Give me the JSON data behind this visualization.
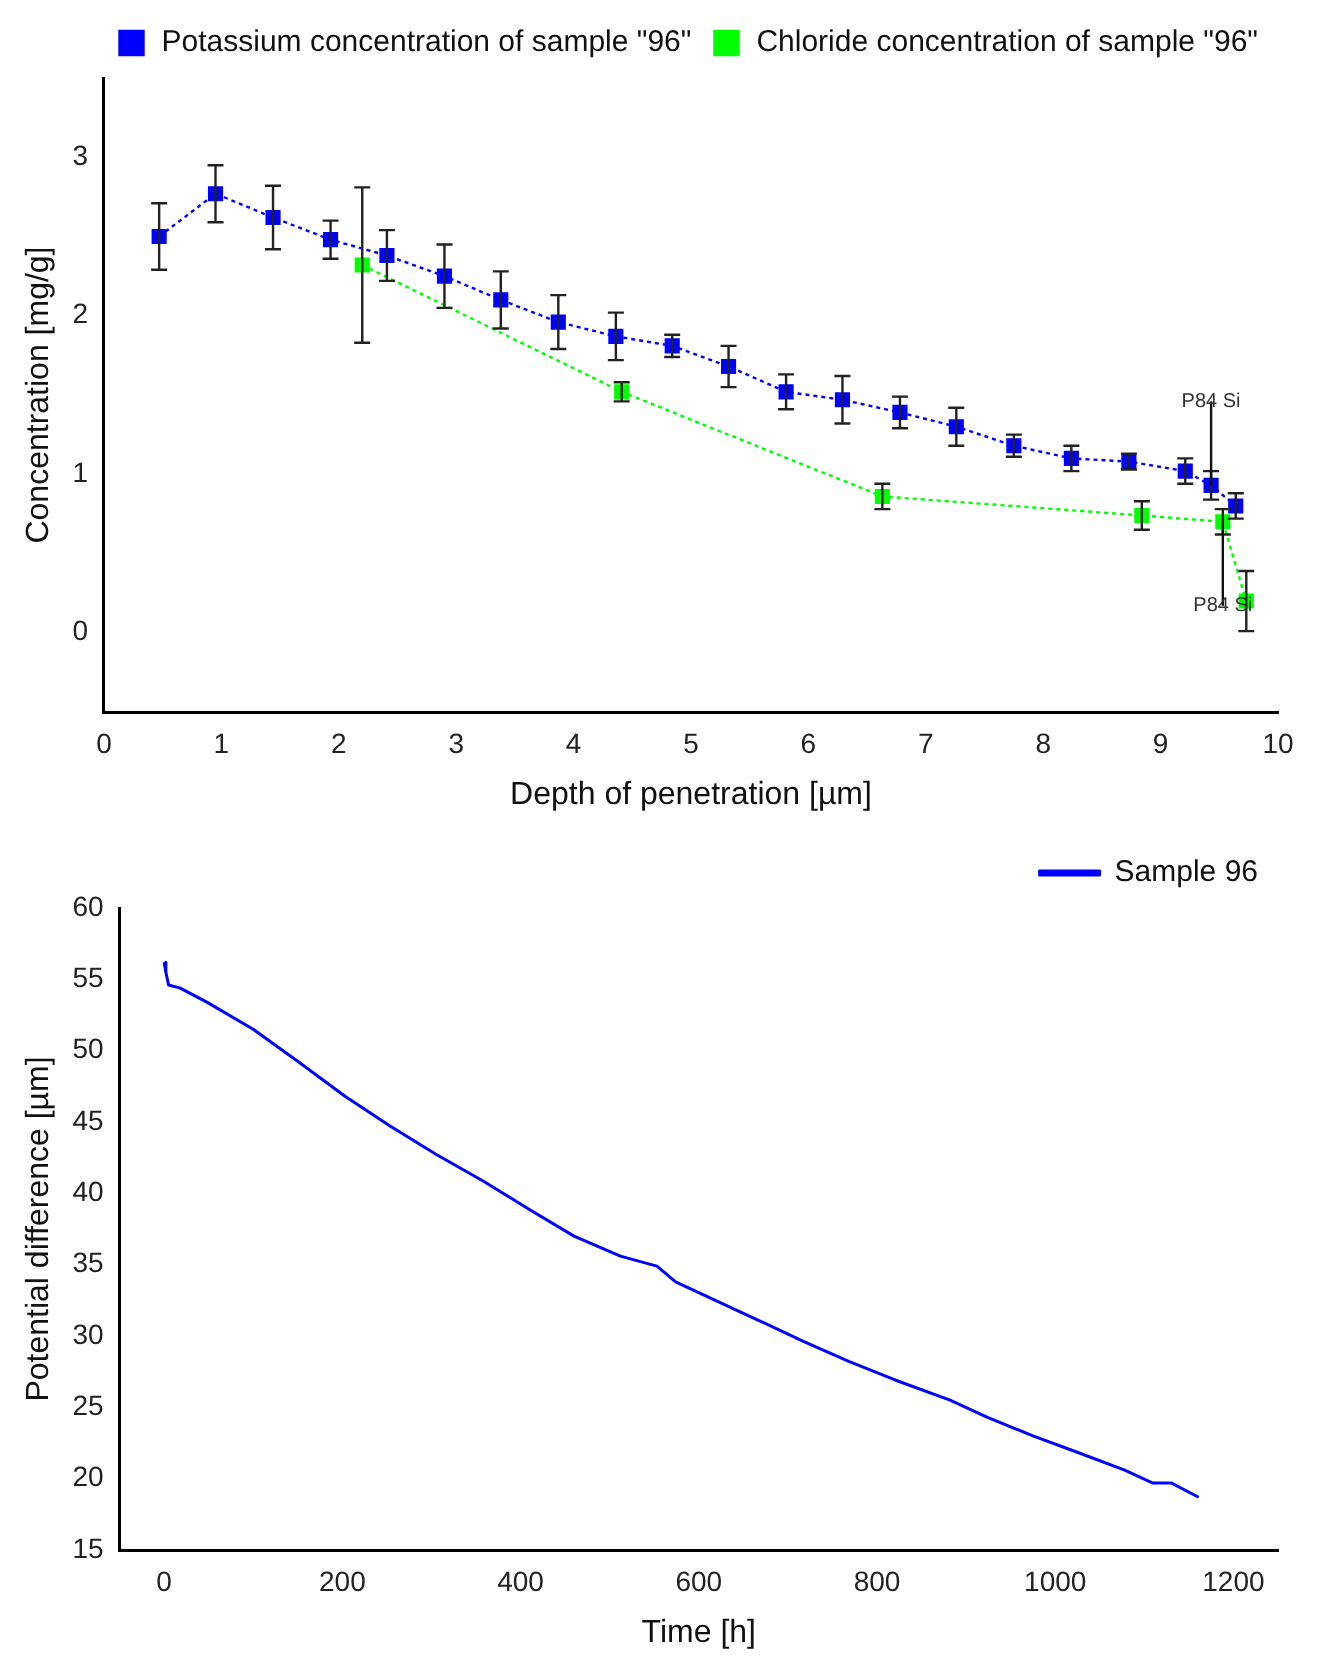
{
  "chart_data": [
    {
      "type": "line",
      "xlabel": "Depth of penetration [µm]",
      "ylabel": "Concentration [mg/g]",
      "xlim": [
        0,
        10
      ],
      "xticks": [
        0,
        1,
        2,
        3,
        4,
        5,
        6,
        7,
        8,
        9,
        10
      ],
      "ylim": [
        -0.5,
        3.5
      ],
      "yticks": [
        0,
        1,
        2,
        3
      ],
      "grid": false,
      "legend": "top right",
      "marker": "square",
      "line_style": "dotted",
      "series": [
        {
          "name": "Potassium concentration of sample \"96\"",
          "color": "#0000ff",
          "x": [
            0.47,
            0.95,
            1.44,
            1.93,
            2.41,
            2.9,
            3.38,
            3.87,
            4.36,
            4.84,
            5.32,
            5.81,
            6.29,
            6.78,
            7.26,
            7.75,
            8.24,
            8.73,
            9.21,
            9.43,
            9.64
          ],
          "values": [
            2.5,
            2.77,
            2.62,
            2.48,
            2.38,
            2.25,
            2.1,
            1.96,
            1.87,
            1.81,
            1.68,
            1.52,
            1.47,
            1.39,
            1.3,
            1.18,
            1.1,
            1.08,
            1.02,
            0.93,
            0.8
          ],
          "errors": [
            0.21,
            0.18,
            0.2,
            0.12,
            0.16,
            0.2,
            0.18,
            0.17,
            0.15,
            0.07,
            0.13,
            0.11,
            0.15,
            0.1,
            0.12,
            0.07,
            0.08,
            0.05,
            0.08,
            0.09,
            0.08
          ]
        },
        {
          "name": "Chloride concentration of sample \"96\"",
          "color": "#00ff00",
          "x": [
            2.2,
            4.41,
            6.63,
            8.84,
            9.53,
            9.73
          ],
          "values": [
            2.32,
            1.52,
            0.86,
            0.74,
            0.7,
            0.2
          ],
          "errors": [
            0.49,
            0.06,
            0.08,
            0.09,
            0.08,
            0.19
          ]
        }
      ],
      "annotations": [
        {
          "text": "P84 Si",
          "x": 9.43,
          "y": 0.93
        },
        {
          "text": "P84 Si",
          "x": 9.53,
          "y": 0.7
        }
      ]
    },
    {
      "type": "line",
      "xlabel": "Time [h]",
      "ylabel": "Potential difference [µm]",
      "xlim": [
        -50,
        1250
      ],
      "xticks": [
        0,
        200,
        400,
        600,
        800,
        1000,
        1200
      ],
      "ylim": [
        15,
        60
      ],
      "yticks": [
        15,
        20,
        25,
        30,
        35,
        40,
        45,
        50,
        55,
        60
      ],
      "grid": false,
      "legend": "top right",
      "marker": "none",
      "line_style": "solid",
      "series": [
        {
          "name": "Sample 96",
          "color": "#0000ff",
          "x": [
            0,
            2,
            5,
            17.5,
            48,
            100,
            151,
            203,
            254,
            306,
            357,
            409,
            460,
            512,
            553,
            574,
            615,
            667,
            718,
            769,
            821,
            882,
            924,
            975,
            1027,
            1078,
            1109,
            1130,
            1161
          ],
          "values": [
            56.2,
            55.5,
            54.6,
            54.4,
            53.4,
            51.5,
            49.2,
            46.8,
            44.7,
            42.7,
            40.9,
            38.9,
            37,
            35.6,
            34.9,
            33.8,
            32.6,
            31.1,
            29.6,
            28.2,
            26.9,
            25.5,
            24.3,
            23,
            21.8,
            20.6,
            19.7,
            19.7,
            18.7
          ]
        }
      ]
    }
  ]
}
